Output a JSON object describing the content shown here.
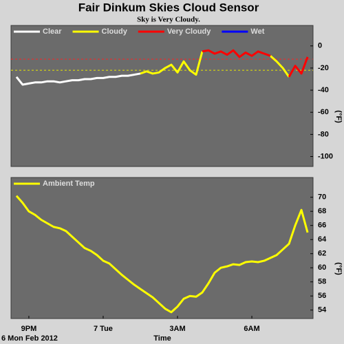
{
  "chart_data": [
    {
      "type": "line",
      "title": "Fair Dinkum Skies Cloud Sensor",
      "subtitle": "Sky is Very Cloudy.",
      "y_label": "(°F)",
      "x": [
        20.5,
        20.75,
        21,
        21.25,
        21.5,
        21.75,
        22,
        22.25,
        22.5,
        22.75,
        23,
        23.25,
        23.5,
        23.75,
        24,
        24.25,
        24.5,
        24.75,
        25,
        25.25,
        25.5,
        25.75,
        26,
        26.25,
        26.5,
        26.75,
        27,
        27.25,
        27.5,
        27.75,
        28,
        28.25,
        28.5,
        28.75,
        29,
        29.25,
        29.5,
        29.75,
        30,
        30.25,
        30.5,
        30.75,
        31,
        31.25,
        31.5,
        31.75,
        32,
        32.25
      ],
      "xlim": [
        20.28,
        32.47
      ],
      "ylim": [
        -109,
        18.5
      ],
      "yticks": [
        0,
        -20,
        -40,
        -60,
        -80,
        -100
      ],
      "thresholds": [
        {
          "value": -12,
          "color": "#ff2020"
        },
        {
          "value": -22,
          "color": "#e8e800"
        }
      ],
      "series": [
        {
          "name": "Clear",
          "color": "#ffffff",
          "values": [
            -28,
            -35,
            -34,
            -33,
            -33,
            -32,
            -32,
            -33,
            -32,
            -31,
            -31,
            -30,
            -30,
            -29,
            -29,
            -28,
            -28,
            -27,
            -27,
            -26,
            -25,
            null,
            null,
            null,
            null,
            null,
            null,
            null,
            null,
            null,
            null,
            null,
            null,
            null,
            null,
            null,
            null,
            null,
            null,
            null,
            null,
            null,
            null,
            null,
            null,
            null,
            null,
            null
          ]
        },
        {
          "name": "Cloudy",
          "color": "#ffff00",
          "values": [
            null,
            null,
            null,
            null,
            null,
            null,
            null,
            null,
            null,
            null,
            null,
            null,
            null,
            null,
            null,
            null,
            null,
            null,
            null,
            null,
            -25,
            -23,
            -25,
            -24,
            -20,
            -17,
            -24,
            -14,
            -22,
            -26,
            -5,
            null,
            null,
            null,
            null,
            null,
            null,
            null,
            null,
            null,
            null,
            -9,
            -14,
            -20,
            -28,
            null,
            null,
            null
          ]
        },
        {
          "name": "Very Cloudy",
          "color": "#ff0000",
          "values": [
            null,
            null,
            null,
            null,
            null,
            null,
            null,
            null,
            null,
            null,
            null,
            null,
            null,
            null,
            null,
            null,
            null,
            null,
            null,
            null,
            null,
            null,
            null,
            null,
            null,
            null,
            null,
            null,
            null,
            null,
            -5,
            -4,
            -7,
            -5,
            -8,
            -4,
            -10,
            -6,
            -9,
            -5,
            -7,
            -9,
            null,
            null,
            -28,
            -18,
            -25,
            -10
          ]
        },
        {
          "name": "Wet",
          "color": "#0000ff",
          "values": [
            null,
            null,
            null,
            null,
            null,
            null,
            null,
            null,
            null,
            null,
            null,
            null,
            null,
            null,
            null,
            null,
            null,
            null,
            null,
            null,
            null,
            null,
            null,
            null,
            null,
            null,
            null,
            null,
            null,
            null,
            null,
            null,
            null,
            null,
            null,
            null,
            null,
            null,
            null,
            null,
            null,
            null,
            null,
            null,
            null,
            null,
            null,
            null
          ]
        }
      ]
    },
    {
      "type": "line",
      "y_label": "(°F)",
      "x_label": "Time",
      "date_label": "6 Mon Feb 2012",
      "x": [
        20.5,
        20.75,
        21,
        21.25,
        21.5,
        21.75,
        22,
        22.25,
        22.5,
        22.75,
        23,
        23.25,
        23.5,
        23.75,
        24,
        24.25,
        24.5,
        24.75,
        25,
        25.25,
        25.5,
        25.75,
        26,
        26.25,
        26.5,
        26.75,
        27,
        27.25,
        27.5,
        27.75,
        28,
        28.25,
        28.5,
        28.75,
        29,
        29.25,
        29.5,
        29.75,
        30,
        30.25,
        30.5,
        30.75,
        31,
        31.25,
        31.5,
        31.75,
        32,
        32.25
      ],
      "xlim": [
        20.28,
        32.47
      ],
      "xticks": [
        {
          "value": 21,
          "label": "9PM"
        },
        {
          "value": 24,
          "label": "7 Tue"
        },
        {
          "value": 27,
          "label": "3AM"
        },
        {
          "value": 30,
          "label": "6AM"
        }
      ],
      "ylim": [
        52.8,
        72.8
      ],
      "yticks": [
        70,
        68,
        66,
        64,
        62,
        60,
        58,
        56,
        54
      ],
      "series": [
        {
          "name": "Ambient Temp",
          "color": "#ffff00",
          "values": [
            70.2,
            69.2,
            68.0,
            67.5,
            66.8,
            66.3,
            65.8,
            65.6,
            65.2,
            64.4,
            63.6,
            62.8,
            62.4,
            61.8,
            61.0,
            60.6,
            59.8,
            59.0,
            58.3,
            57.6,
            57.0,
            56.4,
            55.8,
            55.0,
            54.2,
            53.7,
            54.5,
            55.6,
            56.0,
            55.9,
            56.5,
            57.8,
            59.3,
            60.0,
            60.2,
            60.5,
            60.4,
            60.8,
            60.9,
            60.8,
            61.0,
            61.4,
            61.8,
            62.6,
            63.4,
            66.0,
            68.2,
            65.0
          ]
        }
      ]
    }
  ]
}
